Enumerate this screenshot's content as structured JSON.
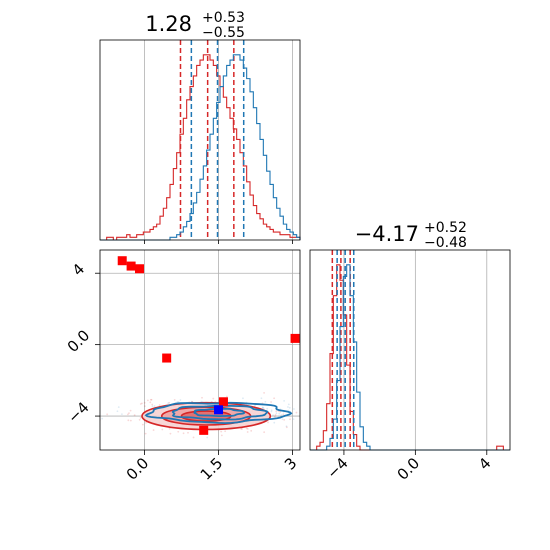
{
  "chart_data": [
    {
      "type": "histogram",
      "panel": "top-left",
      "title": {
        "value": "1.28",
        "sup": "+0.53",
        "sub": "−0.55"
      },
      "xlim": [
        -0.9,
        3.15
      ],
      "grid": true,
      "x_ticks": [
        0.0,
        1.5,
        3.0
      ],
      "series": [
        {
          "color": "#d62728",
          "quantiles": [
            0.73,
            1.28,
            1.81
          ],
          "bins": {
            "start": -0.9,
            "width": 0.0675,
            "counts": [
              0,
              0,
              1,
              1,
              0,
              1,
              1,
              1,
              2,
              1,
              1,
              2,
              2,
              3,
              3,
              4,
              5,
              6,
              9,
              12,
              16,
              21,
              27,
              33,
              40,
              46,
              53,
              58,
              62,
              66,
              68,
              70,
              70,
              68,
              66,
              62,
              58,
              54,
              50,
              46,
              42,
              38,
              33,
              28,
              22,
              17,
              13,
              10,
              8,
              6,
              5,
              4,
              3,
              3,
              2,
              2,
              2,
              1,
              1,
              1
            ]
          }
        },
        {
          "color": "#1f77b4",
          "quantiles": [
            0.95,
            1.48,
            2.01
          ],
          "bins": {
            "start": -0.9,
            "width": 0.0675,
            "counts": [
              0,
              0,
              0,
              0,
              0,
              0,
              0,
              0,
              0,
              0,
              0,
              0,
              0,
              0,
              0,
              0,
              0,
              0,
              0,
              0,
              0,
              1,
              1,
              2,
              3,
              5,
              7,
              10,
              14,
              18,
              23,
              28,
              34,
              40,
              46,
              52,
              58,
              62,
              66,
              68,
              70,
              70,
              68,
              65,
              61,
              56,
              50,
              44,
              38,
              32,
              26,
              21,
              16,
              12,
              9,
              6,
              4,
              3,
              2,
              1
            ]
          }
        }
      ]
    },
    {
      "type": "scatter",
      "panel": "bottom-left",
      "xlim": [
        -0.9,
        3.15
      ],
      "ylim": [
        -5.9,
        5.3
      ],
      "grid": true,
      "x_ticks": [
        0.0,
        1.5,
        3.0
      ],
      "y_ticks": [
        -4,
        0,
        4
      ],
      "red_points": [
        [
          -0.45,
          4.7
        ],
        [
          -0.27,
          4.4
        ],
        [
          -0.1,
          4.25
        ],
        [
          0.45,
          -0.75
        ],
        [
          3.05,
          0.35
        ],
        [
          1.6,
          -3.2
        ],
        [
          1.2,
          -4.8
        ]
      ],
      "blue_points": [
        [
          1.5,
          -3.65
        ]
      ],
      "contours": {
        "red": {
          "center": [
            1.25,
            -4.0
          ],
          "radii": [
            [
              1.3,
              0.75
            ],
            [
              0.9,
              0.5
            ],
            [
              0.5,
              0.28
            ]
          ]
        },
        "blue": {
          "center": [
            1.5,
            -3.8
          ],
          "radii": [
            [
              1.4,
              0.55
            ],
            [
              0.95,
              0.38
            ],
            [
              0.5,
              0.2
            ]
          ]
        }
      }
    },
    {
      "type": "histogram",
      "panel": "bottom-right",
      "title": {
        "value": "−4.17",
        "sup": "+0.52",
        "sub": "−0.48"
      },
      "xlim": [
        -5.9,
        5.3
      ],
      "grid": true,
      "x_ticks": [
        -4,
        0,
        4
      ],
      "series": [
        {
          "color": "#d62728",
          "quantiles": [
            -4.65,
            -4.17,
            -3.65
          ],
          "bins": {
            "start": -5.9,
            "width": 0.1867,
            "counts": [
              0,
              0,
              1,
              2,
              5,
              12,
              25,
              40,
              48,
              44,
              35,
              22,
              10,
              4,
              1,
              0,
              0,
              0,
              0,
              0,
              0,
              0,
              0,
              0,
              0,
              0,
              0,
              0,
              0,
              0,
              0,
              0,
              0,
              0,
              0,
              0,
              0,
              0,
              0,
              0,
              0,
              0,
              0,
              0,
              0,
              0,
              0,
              0,
              0,
              0,
              0,
              0,
              0,
              0,
              0,
              0,
              1,
              1,
              0,
              0
            ]
          }
        },
        {
          "color": "#1f77b4",
          "quantiles": [
            -4.38,
            -3.93,
            -3.45
          ],
          "bins": {
            "start": -5.9,
            "width": 0.1867,
            "counts": [
              0,
              0,
              0,
              0,
              0,
              1,
              3,
              8,
              18,
              32,
              45,
              48,
              40,
              28,
              15,
              6,
              2,
              1,
              0,
              0,
              0,
              0,
              0,
              0,
              0,
              0,
              0,
              0,
              0,
              0,
              0,
              0,
              0,
              0,
              0,
              0,
              0,
              0,
              0,
              0,
              0,
              0,
              0,
              0,
              0,
              0,
              0,
              0,
              0,
              0,
              0,
              0,
              0,
              0,
              0,
              0,
              0,
              0,
              0,
              0
            ]
          }
        }
      ]
    }
  ]
}
